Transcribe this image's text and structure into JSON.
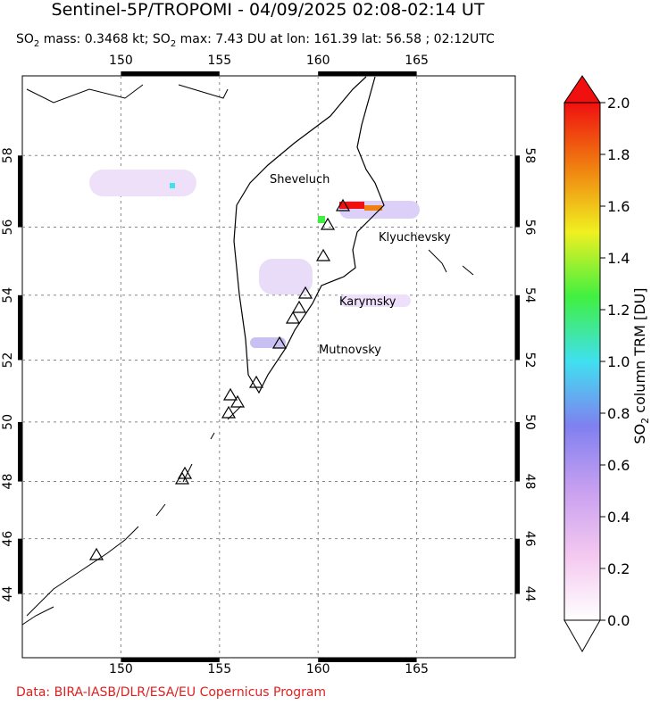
{
  "header": {
    "title": "Sentinel-5P/TROPOMI - 04/09/2025 02:08-02:14 UT",
    "subtitle": [
      "SO",
      "2",
      " mass: 0.3468 kt; SO",
      "2",
      " max: 7.43 DU at lon: 161.39 lat: 56.58 ; 02:12UTC"
    ]
  },
  "map": {
    "lonlim": [
      145,
      170
    ],
    "latlim": [
      41.6,
      60.1
    ],
    "lon_ticks": [
      150,
      155,
      160,
      165
    ],
    "lat_ticks": [
      44,
      46,
      48,
      50,
      52,
      54,
      56,
      58
    ],
    "volcano_labels": [
      "Sheveluch",
      "Klyuchevsky",
      "Karymsky",
      "Mutnovsky"
    ]
  },
  "colorbar": {
    "label": [
      "SO",
      "2",
      " column TRM [DU]"
    ],
    "range": [
      0,
      2
    ],
    "ticks": [
      {
        "value": 0,
        "label": "0.0"
      },
      {
        "value": 0.2,
        "label": "0.2"
      },
      {
        "value": 0.4,
        "label": "0.4"
      },
      {
        "value": 0.6,
        "label": "0.6"
      },
      {
        "value": 0.8,
        "label": "0.8"
      },
      {
        "value": 1,
        "label": "1.0"
      },
      {
        "value": 1.2,
        "label": "1.2"
      },
      {
        "value": 1.4,
        "label": "1.4"
      },
      {
        "value": 1.6,
        "label": "1.6"
      },
      {
        "value": 1.8,
        "label": "1.8"
      },
      {
        "value": 2,
        "label": "2.0"
      }
    ],
    "colors": [
      "#ffffff",
      "#f4c8f0",
      "#c8a0f0",
      "#8080f0",
      "#40e0f0",
      "#40f040",
      "#f0f020",
      "#f08010",
      "#f01010"
    ]
  },
  "footer": {
    "credit": "Data: BIRA-IASB/DLR/ESA/EU Copernicus Program"
  }
}
